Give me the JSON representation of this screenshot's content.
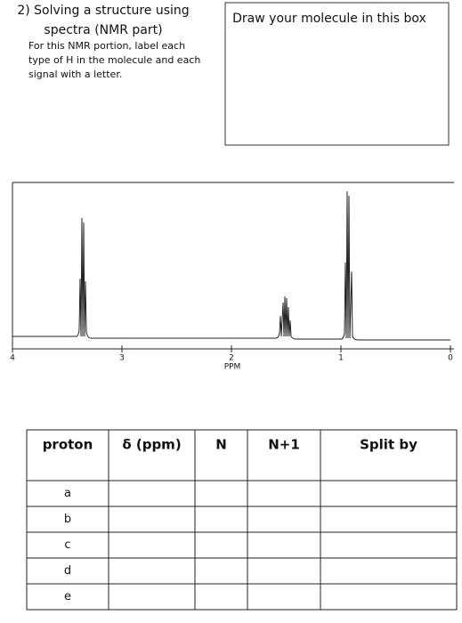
{
  "header": {
    "title_lines": [
      "2) Solving a structure using",
      "spectra (NMR part)"
    ],
    "instruction_lines": [
      "For this NMR portion, label each",
      "type of H in the molecule and each",
      "signal with a letter."
    ]
  },
  "draw_box": {
    "label": "Draw your molecule in this box"
  },
  "spectrum": {
    "x_label": "PPM",
    "ticks": [
      4,
      3,
      2,
      1,
      0
    ]
  },
  "table": {
    "columns": [
      "proton",
      "δ (ppm)",
      "N",
      "N+1",
      "Split by"
    ],
    "protons": [
      "a",
      "b",
      "c",
      "d",
      "e"
    ]
  }
}
